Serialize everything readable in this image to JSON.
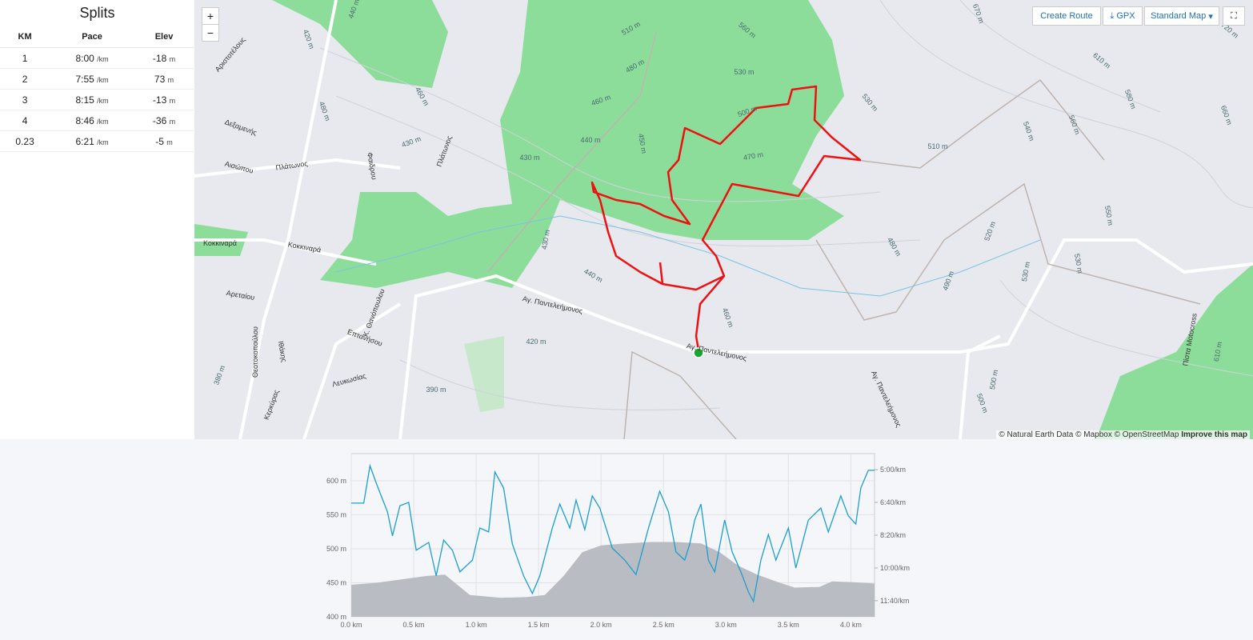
{
  "splits": {
    "title": "Splits",
    "headers": [
      "KM",
      "Pace",
      "Elev"
    ],
    "rows": [
      {
        "km": "1",
        "pace": "8:00",
        "pace_unit": "/km",
        "elev": "-18",
        "elev_unit": "m"
      },
      {
        "km": "2",
        "pace": "7:55",
        "pace_unit": "/km",
        "elev": "73",
        "elev_unit": "m"
      },
      {
        "km": "3",
        "pace": "8:15",
        "pace_unit": "/km",
        "elev": "-13",
        "elev_unit": "m"
      },
      {
        "km": "4",
        "pace": "8:46",
        "pace_unit": "/km",
        "elev": "-36",
        "elev_unit": "m"
      },
      {
        "km": "0.23",
        "pace": "6:21",
        "pace_unit": "/km",
        "elev": "-5",
        "elev_unit": "m"
      }
    ]
  },
  "map": {
    "zoom_in": "+",
    "zoom_out": "−",
    "buttons": {
      "create_route": "Create Route",
      "gpx": "GPX",
      "map_style": "Standard Map"
    },
    "attribution": "© Natural Earth Data © Mapbox © OpenStreetMap",
    "improve": "Improve this map",
    "labels": [
      "440 m",
      "420 m",
      "Αριστοτέλους",
      "Δεξαμενής",
      "Αισώπου",
      "Πλάτωνος",
      "Φαιδρου",
      "Πλάτωνος",
      "460 m",
      "430 m",
      "430 m",
      "480 m",
      "510 m",
      "480 m",
      "460 m",
      "440 m",
      "450 m",
      "560 m",
      "530 m",
      "500 m",
      "470 m",
      "530 m",
      "510 m",
      "540 m",
      "560 m",
      "580 m",
      "610 m",
      "670 m",
      "660 m",
      "720 m",
      "Κοκκιναρά",
      "Κοκκιναρά",
      "Αρεταίου",
      "Κ. Θανόπουλου",
      "Επτανήσου",
      "Αγ. Παντελεήμονος",
      "Αγ. Παντελεήμονος",
      "Αγ. Παντελεήμονος",
      "420 m",
      "390 m",
      "430 m",
      "440 m",
      "460 m",
      "480 m",
      "490 m",
      "520 m",
      "530 m",
      "550 m",
      "530 m",
      "500 m",
      "Πίστα Motocross",
      "610 m",
      "Θεοτοκοπούλου",
      "Ιθάκης",
      "Κερκύρας",
      "Λευκωσίας",
      "380 m",
      "500 m"
    ]
  },
  "chart_data": {
    "type": "line",
    "xlim": [
      0,
      4.19
    ],
    "xticks": [
      {
        "value": 0,
        "label": "0.0 km"
      },
      {
        "value": 0.5,
        "label": "0.5 km"
      },
      {
        "value": 1,
        "label": "1.0 km"
      },
      {
        "value": 1.5,
        "label": "1.5 km"
      },
      {
        "value": 2,
        "label": "2.0 km"
      },
      {
        "value": 2.5,
        "label": "2.5 km"
      },
      {
        "value": 3,
        "label": "3.0 km"
      },
      {
        "value": 3.5,
        "label": "3.5 km"
      },
      {
        "value": 4,
        "label": "4.0 km"
      }
    ],
    "ylim": [
      400,
      640
    ],
    "yticks": [
      {
        "value": 400,
        "label": "400 m"
      },
      {
        "value": 450,
        "label": "450 m"
      },
      {
        "value": 500,
        "label": "500 m"
      },
      {
        "value": 550,
        "label": "550 m"
      },
      {
        "value": 600,
        "label": "600 m"
      }
    ],
    "y2lim": [
      749,
      251
    ],
    "y2ticks": [
      {
        "value": 300,
        "label": "5:00/km"
      },
      {
        "value": 400,
        "label": "6:40/km"
      },
      {
        "value": 500,
        "label": "8:20/km"
      },
      {
        "value": 600,
        "label": "10:00/km"
      },
      {
        "value": 700,
        "label": "11:40/km"
      }
    ],
    "grid": true,
    "series": [
      {
        "type": "area",
        "color": "#b9bdc3",
        "x": [
          0,
          0.2,
          0.4,
          0.6,
          0.75,
          0.85,
          0.95,
          1.2,
          1.4,
          1.55,
          1.7,
          1.85,
          2.0,
          2.2,
          2.4,
          2.6,
          2.8,
          2.95,
          3.1,
          3.25,
          3.4,
          3.55,
          3.75,
          3.85,
          4.0,
          4.19
        ],
        "values": [
          447,
          450,
          455,
          460,
          462,
          447,
          432,
          428,
          429,
          432,
          460,
          495,
          505,
          508,
          510,
          510,
          508,
          495,
          475,
          462,
          452,
          443,
          444,
          452,
          451,
          449
        ]
      },
      {
        "type": "line",
        "axis": "y2",
        "color": "#1a9fd0",
        "x": [
          0,
          0.1,
          0.15,
          0.2,
          0.29,
          0.33,
          0.39,
          0.46,
          0.52,
          0.62,
          0.68,
          0.74,
          0.81,
          0.87,
          0.97,
          1.03,
          1.1,
          1.15,
          1.22,
          1.29,
          1.38,
          1.45,
          1.51,
          1.61,
          1.67,
          1.75,
          1.8,
          1.87,
          1.93,
          1.99,
          2.09,
          2.19,
          2.28,
          2.38,
          2.47,
          2.54,
          2.6,
          2.67,
          2.71,
          2.75,
          2.8,
          2.86,
          2.91,
          2.99,
          3.05,
          3.12,
          3.18,
          3.22,
          3.28,
          3.34,
          3.4,
          3.5,
          3.56,
          3.66,
          3.76,
          3.82,
          3.92,
          3.98,
          4.04,
          4.08,
          4.14,
          4.19
        ],
        "values": [
          402,
          402,
          288,
          341,
          429,
          502,
          410,
          400,
          546,
          522,
          624,
          515,
          546,
          612,
          576,
          478,
          490,
          307,
          356,
          527,
          624,
          678,
          624,
          478,
          405,
          478,
          393,
          483,
          380,
          417,
          539,
          576,
          620,
          478,
          366,
          429,
          551,
          576,
          527,
          454,
          405,
          576,
          612,
          454,
          551,
          612,
          673,
          702,
          576,
          498,
          576,
          478,
          600,
          454,
          417,
          490,
          380,
          441,
          466,
          356,
          302,
          302
        ]
      }
    ]
  }
}
